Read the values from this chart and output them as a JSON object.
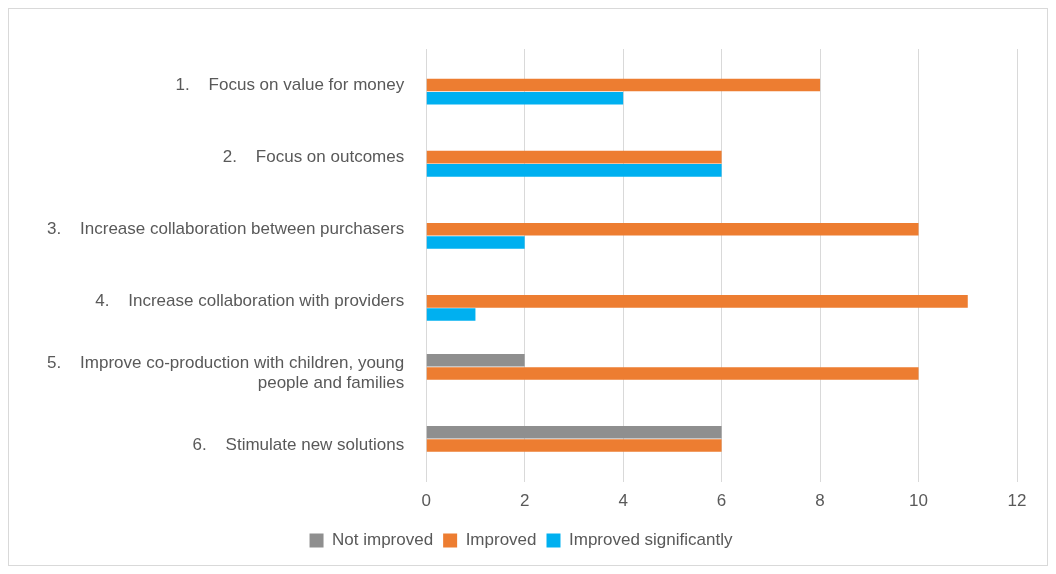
{
  "chart_data": {
    "type": "bar",
    "orientation": "horizontal",
    "categories": [
      "1.    Focus on value for money",
      "2.    Focus on outcomes",
      "3.    Increase collaboration between purchasers",
      "4.    Increase collaboration with providers",
      "5.    Improve co-production with children, young people and families",
      "6.    Stimulate new solutions"
    ],
    "series": [
      {
        "name": "Not improved",
        "color": "#8f8f8f",
        "values": [
          0,
          0,
          0,
          0,
          2,
          6
        ]
      },
      {
        "name": "Improved",
        "color": "#ed7d31",
        "values": [
          8,
          6,
          10,
          11,
          10,
          6
        ]
      },
      {
        "name": "Improved significantly",
        "color": "#00b0f0",
        "values": [
          4,
          6,
          2,
          1,
          0,
          0
        ]
      }
    ],
    "xlim": [
      0,
      12
    ],
    "xticks": [
      0,
      2,
      4,
      6,
      8,
      10,
      12
    ],
    "grid": "x",
    "legend": "bottom"
  }
}
